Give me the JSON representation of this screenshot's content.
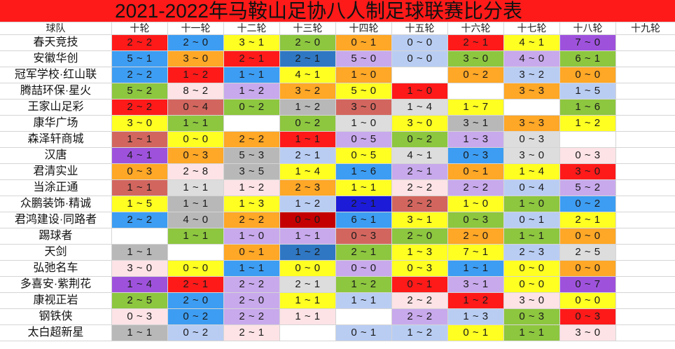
{
  "title": "2021-2022年马鞍山足协八人制足球联赛比分表",
  "palette": {
    "title_bg": "#ff1a1a",
    "red": "#ff1a1a",
    "darkred": "#c40000",
    "blue": "#3d9df2",
    "steel": "#2f77c2",
    "navy": "#1c1cd8",
    "yellow": "#ffff22",
    "orange": "#ffa726",
    "green": "#8dc63f",
    "purple": "#9e52dc",
    "lavender": "#c8a9ec",
    "periwinkle": "#b9cdf3",
    "gray": "#b8b8b8",
    "lightgray": "#dddddd",
    "pink": "#fde3e6",
    "rose": "#d2665e",
    "white": "#ffffff"
  },
  "table": {
    "team_header": "球队",
    "rounds": [
      "十轮",
      "十一轮",
      "十二轮",
      "十三轮",
      "十四轮",
      "十五轮",
      "十六轮",
      "十七轮",
      "十八轮",
      "十九轮"
    ],
    "rows": [
      {
        "team": "春天竞技",
        "scores": [
          "2 ~ 2",
          "2 ~ 0",
          "3 ~ 1",
          "2 ~ 0",
          "0 ~ 1",
          "0 ~ 0",
          "2 ~ 1",
          "4 ~ 1",
          "7 ~ 0",
          ""
        ],
        "colors": [
          "red",
          "blue",
          "yellow",
          "green",
          "orange",
          "periwinkle",
          "red",
          "yellow",
          "purple",
          "white"
        ]
      },
      {
        "team": "安徽华创",
        "scores": [
          "5 ~ 1",
          "3 ~ 0",
          "2 ~ 1",
          "2 ~ 1",
          "5 ~ 0",
          "0 ~ 0",
          "3 ~ 0",
          "4 ~ 0",
          "6 ~ 1",
          ""
        ],
        "colors": [
          "blue",
          "orange",
          "red",
          "steel",
          "lavender",
          "periwinkle",
          "green",
          "lavender",
          "green",
          "white"
        ]
      },
      {
        "team": "冠军学校·红山联",
        "scores": [
          "2 ~ 2",
          "1 ~ 2",
          "1 ~ 1",
          "4 ~ 1",
          "1 ~ 0",
          "",
          "0 ~ 2",
          "3 ~ 2",
          "0 ~ 0",
          ""
        ],
        "colors": [
          "blue",
          "red",
          "blue",
          "yellow",
          "orange",
          "white",
          "orange",
          "periwinkle",
          "orange",
          "white"
        ]
      },
      {
        "team": "腾喆环保·星火",
        "scores": [
          "5 ~ 2",
          "8 ~ 2",
          "1 ~ 2",
          "3 ~ 2",
          "5 ~ 0",
          "1 ~ 0",
          "",
          "3 ~ 3",
          "1 ~ 5",
          ""
        ],
        "colors": [
          "green",
          "pink",
          "lavender",
          "orange",
          "yellow",
          "red",
          "white",
          "orange",
          "periwinkle",
          "white"
        ]
      },
      {
        "team": "王家山足彩",
        "scores": [
          "2 ~ 2",
          "0 ~ 4",
          "0 ~ 2",
          "1 ~ 2",
          "3 ~ 0",
          "1 ~ 4",
          "1 ~ 7",
          "",
          "1 ~ 6",
          ""
        ],
        "colors": [
          "red",
          "rose",
          "green",
          "gray",
          "rose",
          "lightgray",
          "yellow",
          "white",
          "green",
          "white"
        ]
      },
      {
        "team": "康华广场",
        "scores": [
          "3 ~ 0",
          "1 ~ 1",
          "",
          "0 ~ 2",
          "1 ~ 0",
          "3 ~ 0",
          "3 ~ 1",
          "3 ~ 3",
          "1 ~ 2",
          ""
        ],
        "colors": [
          "yellow",
          "green",
          "white",
          "green",
          "lightgray",
          "yellow",
          "gray",
          "orange",
          "yellow",
          "white"
        ]
      },
      {
        "team": "森泽轩商城",
        "scores": [
          "1 ~ 1",
          "0 ~ 0",
          "2 ~ 2",
          "1 ~ 1",
          "0 ~ 5",
          "0 ~ 2",
          "1 ~ 3",
          "0 ~ 3",
          "",
          ""
        ],
        "colors": [
          "rose",
          "yellow",
          "orange",
          "red",
          "lavender",
          "green",
          "lavender",
          "lightgray",
          "white",
          "white"
        ]
      },
      {
        "team": "汉唐",
        "scores": [
          "4 ~ 1",
          "0 ~ 3",
          "5 ~ 3",
          "2 ~ 1",
          "0 ~ 5",
          "4 ~ 1",
          "0 ~ 3",
          "3 ~ 0",
          "0 ~ 3",
          ""
        ],
        "colors": [
          "purple",
          "orange",
          "gray",
          "periwinkle",
          "yellow",
          "lightgray",
          "blue",
          "lightgray",
          "pink",
          "white"
        ]
      },
      {
        "team": "君清实业",
        "scores": [
          "0 ~ 3",
          "2 ~ 8",
          "3 ~ 5",
          "1 ~ 4",
          "1 ~ 6",
          "2 ~ 1",
          "0 ~ 1",
          "1 ~ 4",
          "3 ~ 0",
          ""
        ],
        "colors": [
          "orange",
          "pink",
          "gray",
          "yellow",
          "blue",
          "lavender",
          "orange",
          "yellow",
          "red",
          "white"
        ]
      },
      {
        "team": "当涂正通",
        "scores": [
          "1 ~ 1",
          "1 ~ 1",
          "1 ~ 2",
          "2 ~ 3",
          "1 ~ 1",
          "2 ~ 2",
          "2 ~ 2",
          "0 ~ 4",
          "5 ~ 2",
          ""
        ],
        "colors": [
          "rose",
          "lightgray",
          "pink",
          "orange",
          "yellow",
          "pink",
          "lavender",
          "periwinkle",
          "lavender",
          "white"
        ]
      },
      {
        "team": "众鹏装饰·精诚",
        "scores": [
          "1 ~ 5",
          "1 ~ 1",
          "1 ~ 3",
          "1 ~ 2",
          "2 ~ 1",
          "2 ~ 2",
          "1 ~ 0",
          "1 ~ 0",
          "0 ~ 2",
          ""
        ],
        "colors": [
          "yellow",
          "gray",
          "yellow",
          "periwinkle",
          "navy",
          "rose",
          "yellow",
          "green",
          "blue",
          "white"
        ]
      },
      {
        "team": "君鸿建设·同路者",
        "scores": [
          "2 ~ 2",
          "4 ~ 0",
          "2 ~ 2",
          "0 ~ 0",
          "6 ~ 1",
          "3 ~ 1",
          "0 ~ 3",
          "0 ~ 1",
          "2 ~ 1",
          ""
        ],
        "colors": [
          "blue",
          "gray",
          "orange",
          "darkred",
          "blue",
          "yellow",
          "green",
          "periwinkle",
          "yellow",
          "white"
        ]
      },
      {
        "team": "踢球者",
        "scores": [
          "",
          "1 ~ 1",
          "1 ~ 0",
          "1 ~ 1",
          "0 ~ 3",
          "2 ~ 0",
          "2 ~ 0",
          "1 ~ 1",
          "0 ~ 0",
          ""
        ],
        "colors": [
          "white",
          "green",
          "lavender",
          "lavender",
          "rose",
          "green",
          "orange",
          "green",
          "orange",
          "white"
        ]
      },
      {
        "team": "天剑",
        "scores": [
          "1 ~ 1",
          "",
          "0 ~ 1",
          "1 ~ 2",
          "2 ~ 1",
          "1 ~ 3",
          "7 ~ 1",
          "2 ~ 3",
          "2 ~ 5",
          ""
        ],
        "colors": [
          "gray",
          "white",
          "orange",
          "steel",
          "green",
          "yellow",
          "yellow",
          "periwinkle",
          "lightgray",
          "white"
        ]
      },
      {
        "team": "弘弛名车",
        "scores": [
          "3 ~ 0",
          "0 ~ 0",
          "1 ~ 1",
          "0 ~ 0",
          "0 ~ 0",
          "0 ~ 3",
          "1 ~ 1",
          "0 ~ 0",
          "0 ~ 0",
          ""
        ],
        "colors": [
          "pink",
          "yellow",
          "blue",
          "yellow",
          "lavender",
          "yellow",
          "blue",
          "yellow",
          "orange",
          "white"
        ]
      },
      {
        "team": "多喜安·紫荆花",
        "scores": [
          "1 ~ 4",
          "2 ~ 1",
          "2 ~ 2",
          "2 ~ 1",
          "1 ~ 2",
          "0 ~ 1",
          "3 ~ 1",
          "0 ~ 0",
          "0 ~ 7",
          ""
        ],
        "colors": [
          "purple",
          "red",
          "lavender",
          "lightgray",
          "green",
          "red",
          "lavender",
          "yellow",
          "purple",
          "white"
        ]
      },
      {
        "team": "康视正岩",
        "scores": [
          "2 ~ 5",
          "2 ~ 0",
          "2 ~ 0",
          "1 ~ 1",
          "1 ~ 1",
          "2 ~ 2",
          "1 ~ 2",
          "3 ~ 0",
          "0 ~ 0",
          ""
        ],
        "colors": [
          "green",
          "blue",
          "lavender",
          "yellow",
          "periwinkle",
          "pink",
          "red",
          "pink",
          "yellow",
          "white"
        ]
      },
      {
        "team": "钢铁侠",
        "scores": [
          "0 ~ 3",
          "0 ~ 2",
          "2 ~ 2",
          "1 ~ 1",
          "",
          "2 ~ 2",
          "1 ~ 3",
          "0 ~ 3",
          "0 ~ 3",
          ""
        ],
        "colors": [
          "pink",
          "blue",
          "lavender",
          "pink",
          "white",
          "lavender",
          "periwinkle",
          "green",
          "red",
          "white"
        ]
      },
      {
        "team": "太白超新星",
        "scores": [
          "1 ~ 1",
          "0 ~ 2",
          "2 ~ 1",
          "",
          "0 ~ 1",
          "1 ~ 2",
          "0 ~ 1",
          "1 ~ 1",
          "3 ~ 0",
          ""
        ],
        "colors": [
          "gray",
          "periwinkle",
          "pink",
          "white",
          "periwinkle",
          "periwinkle",
          "yellow",
          "green",
          "pink",
          "white"
        ]
      }
    ]
  }
}
